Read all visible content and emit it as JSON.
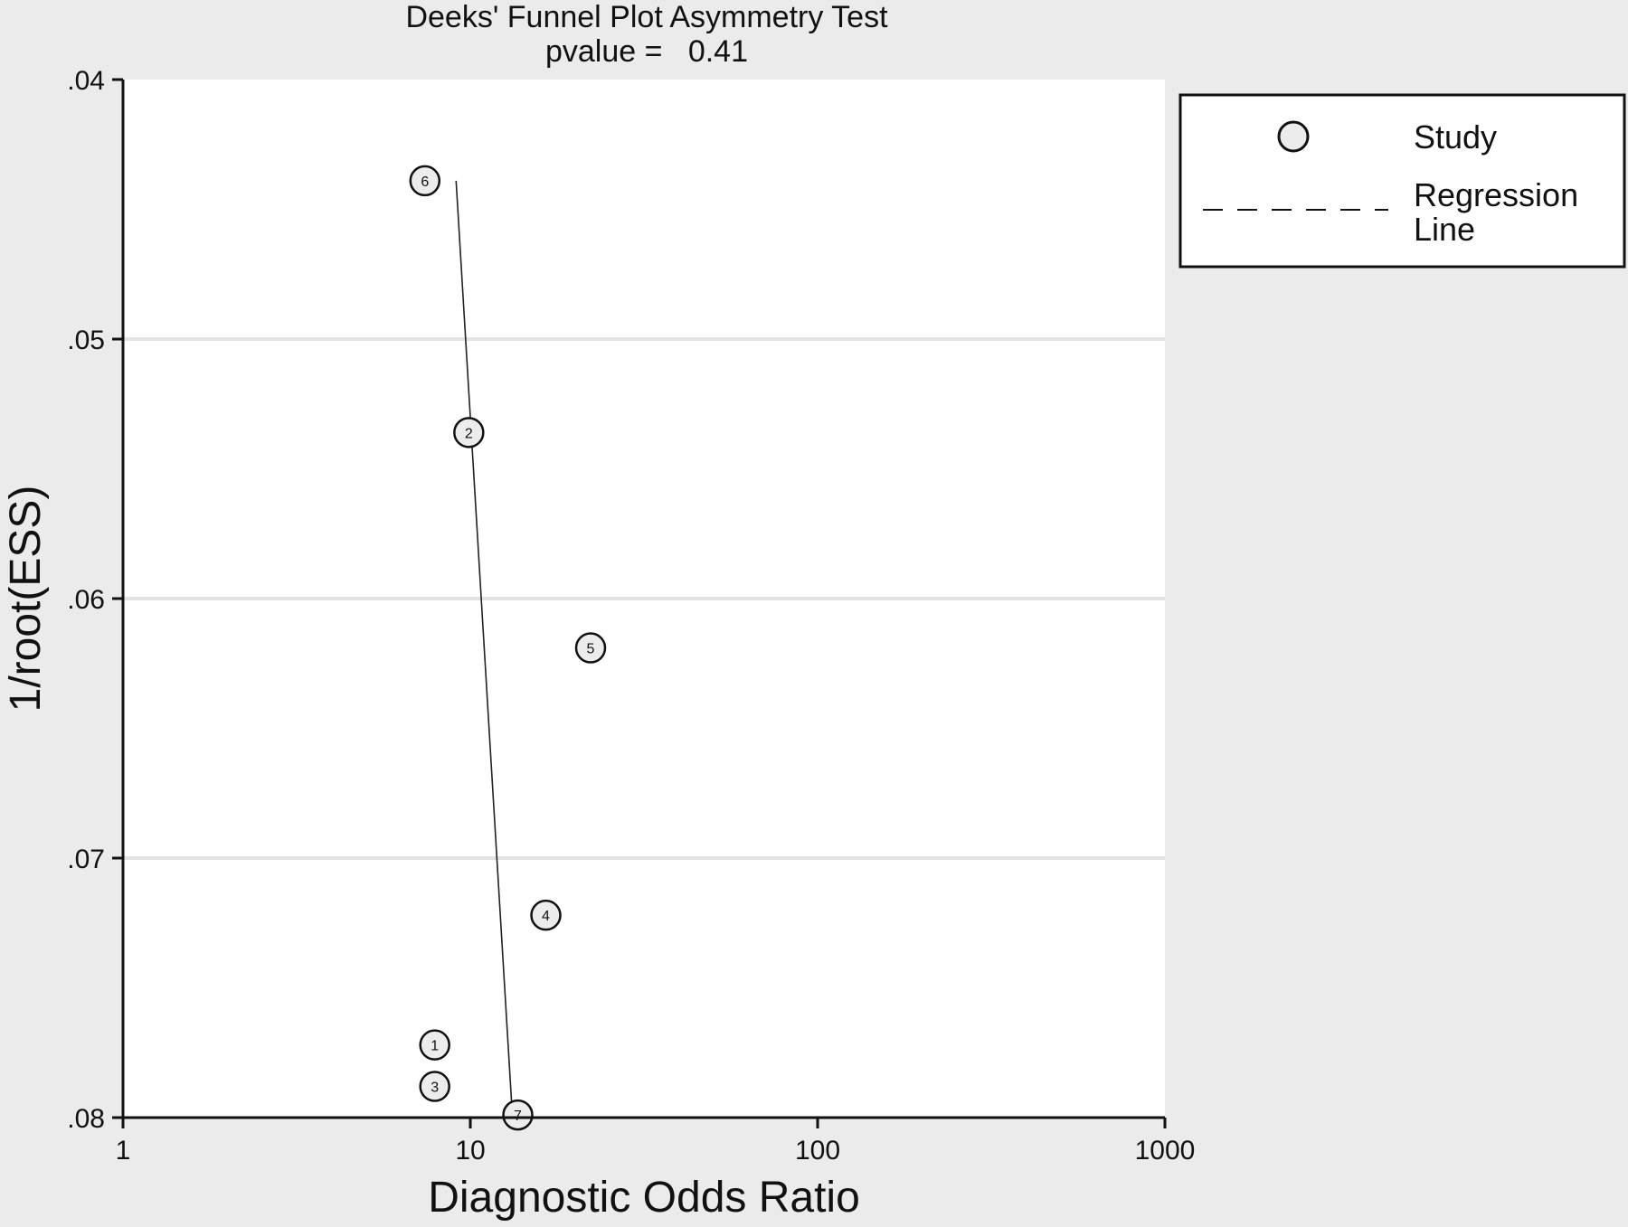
{
  "chart_data": {
    "type": "scatter",
    "title": "Deeks' Funnel Plot Asymmetry Test",
    "subtitle": "pvalue =   0.41",
    "xlabel": "Diagnostic Odds Ratio",
    "ylabel": "1/root(ESS)",
    "x_scale": "log",
    "xlim": [
      1,
      1000
    ],
    "ylim": [
      0.04,
      0.08
    ],
    "y_reversed": true,
    "x_ticks": [
      {
        "value": 1,
        "label": "1"
      },
      {
        "value": 10,
        "label": "10"
      },
      {
        "value": 100,
        "label": "100"
      },
      {
        "value": 1000,
        "label": "1000"
      }
    ],
    "y_ticks": [
      {
        "value": 0.04,
        "label": ".04"
      },
      {
        "value": 0.05,
        "label": ".05"
      },
      {
        "value": 0.06,
        "label": ".06"
      },
      {
        "value": 0.07,
        "label": ".07"
      },
      {
        "value": 0.08,
        "label": ".08"
      }
    ],
    "grid": "horizontal",
    "legend_position": "right",
    "legend": [
      {
        "label": "Study",
        "marker": "circle"
      },
      {
        "label": "Regression",
        "label2": "Line",
        "marker": "dashed-line"
      }
    ],
    "series": [
      {
        "name": "Study",
        "points": [
          {
            "label": "1",
            "x": 7.9,
            "y": 0.0772
          },
          {
            "label": "2",
            "x": 9.9,
            "y": 0.0536
          },
          {
            "label": "3",
            "x": 7.9,
            "y": 0.0788
          },
          {
            "label": "4",
            "x": 16.5,
            "y": 0.0722
          },
          {
            "label": "5",
            "x": 22.2,
            "y": 0.0619
          },
          {
            "label": "6",
            "x": 7.4,
            "y": 0.0439
          },
          {
            "label": "7",
            "x": 13.7,
            "y": 0.0799
          }
        ]
      },
      {
        "name": "Regression Line",
        "line": [
          {
            "x": 9.1,
            "y": 0.0439
          },
          {
            "x": 13.2,
            "y": 0.0798
          }
        ]
      }
    ]
  }
}
